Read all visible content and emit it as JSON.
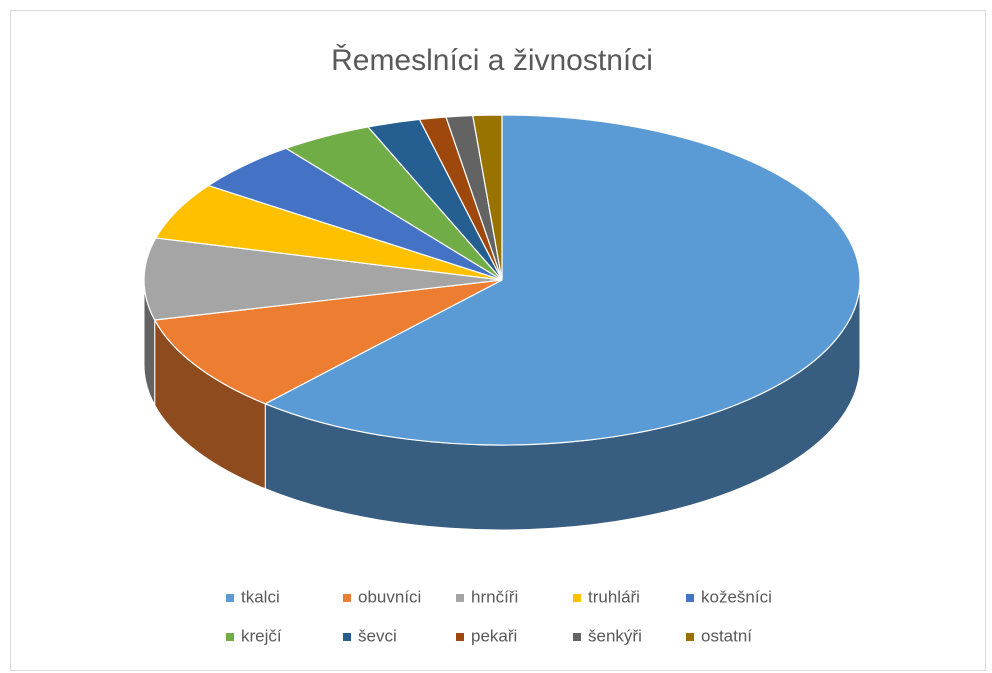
{
  "chart_data": {
    "type": "pie",
    "title": "Řemeslníci a živnostníci",
    "categories": [
      "tkalci",
      "obuvníci",
      "hrnčíři",
      "truhláři",
      "kožešníci",
      "krejčí",
      "ševci",
      "pekaři",
      "šenkýři",
      "ostatní"
    ],
    "values": [
      61.5,
      9.6,
      8,
      5.6,
      5,
      4.2,
      2.4,
      1.2,
      1.2,
      1.3
    ],
    "colors": [
      "#5b9bd5",
      "#ed7d31",
      "#a5a5a5",
      "#ffc000",
      "#4472c4",
      "#70ad47",
      "#255e91",
      "#9e480e",
      "#636363",
      "#997300"
    ],
    "legend": "bottom"
  }
}
